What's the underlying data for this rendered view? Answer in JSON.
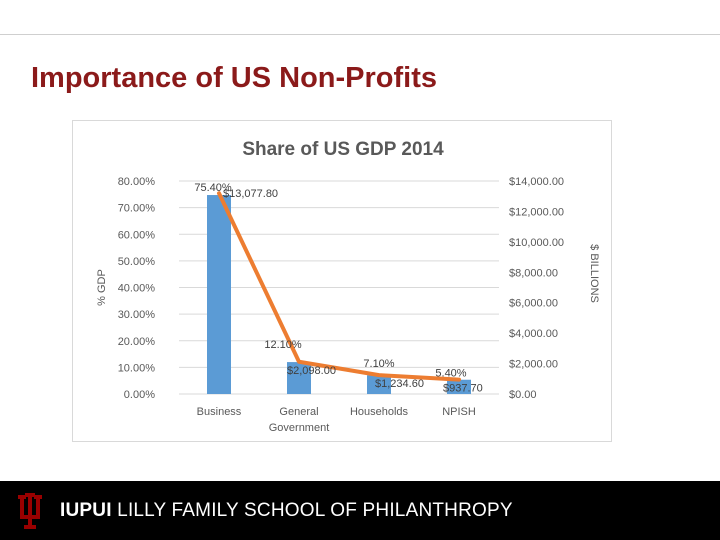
{
  "slide": {
    "title": "Importance of US Non-Profits"
  },
  "footer": {
    "brand_bold": "IUPUI",
    "brand_rest": "LILLY FAMILY SCHOOL OF PHILANTHROPY",
    "logo_icon": "iu-trident-icon",
    "logo_color": "#990000"
  },
  "chart_data": {
    "type": "bar",
    "title": "Share of US GDP 2014",
    "categories": [
      "Business",
      "General Government",
      "Households",
      "NPISH"
    ],
    "y_left_label": "% GDP",
    "y_right_label": "$ BILLIONS",
    "y_left_ticks": [
      "0.00%",
      "10.00%",
      "20.00%",
      "30.00%",
      "40.00%",
      "50.00%",
      "60.00%",
      "70.00%",
      "80.00%"
    ],
    "y_right_ticks": [
      "$0.00",
      "$2,000.00",
      "$4,000.00",
      "$6,000.00",
      "$8,000.00",
      "$10,000.00",
      "$12,000.00",
      "$14,000.00"
    ],
    "ylim_left": [
      0,
      80
    ],
    "ylim_right": [
      0,
      14000
    ],
    "grid": true,
    "series": [
      {
        "kind": "bar",
        "axis": "right",
        "color": "#5b9bd5",
        "values": [
          13077.8,
          2098.0,
          1234.6,
          937.7
        ],
        "labels": [
          "$13,077.80",
          "$2,098.00",
          "$1,234.60",
          "$937.70"
        ]
      },
      {
        "kind": "line",
        "axis": "left",
        "color": "#ed7d31",
        "values": [
          75.4,
          12.1,
          7.1,
          5.4
        ],
        "labels": [
          "75.40%",
          "12.10%",
          "7.10%",
          "5.40%"
        ]
      }
    ]
  }
}
